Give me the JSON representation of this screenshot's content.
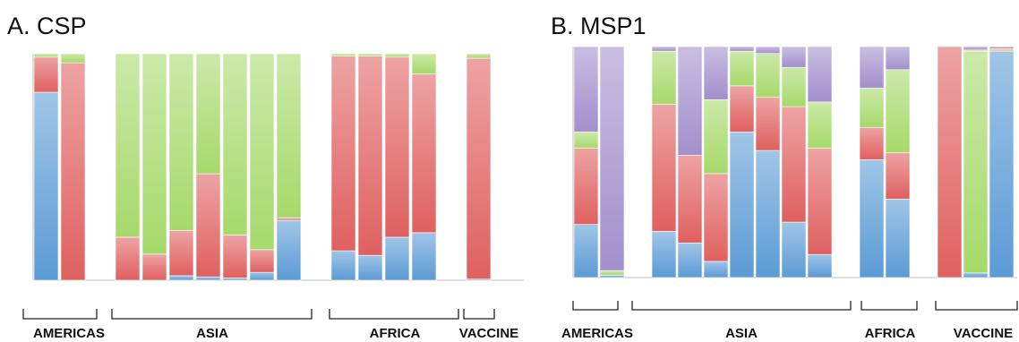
{
  "colors": {
    "blue": "#5b9bd5",
    "red": "#e06060",
    "green": "#a6d96a",
    "purple": "#a28fcc",
    "orange": "#f4b860"
  },
  "chart_data": [
    {
      "type": "bar",
      "stacked": true,
      "percent": true,
      "title": "A. CSP",
      "ylim": [
        0,
        100
      ],
      "segment_order": [
        "blue",
        "red",
        "green"
      ],
      "groups": [
        "AMERICAS",
        "ASIA",
        "AFRICA",
        "VACCINE"
      ],
      "bars": [
        {
          "group": "AMERICAS",
          "values": {
            "blue": 83,
            "red": 15.5,
            "green": 1.5
          }
        },
        {
          "group": "AMERICAS",
          "values": {
            "blue": 0,
            "red": 96,
            "green": 4
          }
        },
        {
          "group": "ASIA",
          "values": {
            "blue": 0,
            "red": 19,
            "green": 81
          }
        },
        {
          "group": "ASIA",
          "values": {
            "blue": 0,
            "red": 11.5,
            "green": 88.5
          }
        },
        {
          "group": "ASIA",
          "values": {
            "blue": 2,
            "red": 20,
            "green": 78
          }
        },
        {
          "group": "ASIA",
          "values": {
            "blue": 1.5,
            "red": 45.5,
            "green": 53
          }
        },
        {
          "group": "ASIA",
          "values": {
            "blue": 1,
            "red": 19,
            "green": 80
          }
        },
        {
          "group": "ASIA",
          "values": {
            "blue": 3.5,
            "red": 10,
            "green": 86.5
          }
        },
        {
          "group": "ASIA",
          "values": {
            "blue": 26.5,
            "red": 1,
            "green": 72.5
          }
        },
        {
          "group": "AFRICA",
          "values": {
            "blue": 13,
            "red": 86,
            "green": 1
          }
        },
        {
          "group": "AFRICA",
          "values": {
            "blue": 11,
            "red": 88,
            "green": 1
          }
        },
        {
          "group": "AFRICA",
          "values": {
            "blue": 19,
            "red": 79.5,
            "green": 1.5
          }
        },
        {
          "group": "AFRICA",
          "values": {
            "blue": 21,
            "red": 70,
            "green": 9
          }
        },
        {
          "group": "VACCINE",
          "values": {
            "blue": 0.5,
            "red": 97.5,
            "green": 2
          }
        }
      ]
    },
    {
      "type": "bar",
      "stacked": true,
      "percent": true,
      "title": "B. MSP1",
      "ylim": [
        0,
        100
      ],
      "segment_order": [
        "blue",
        "red",
        "green",
        "orange",
        "purple"
      ],
      "groups": [
        "AMERICAS",
        "ASIA",
        "AFRICA",
        "VACCINE"
      ],
      "bars": [
        {
          "group": "AMERICAS",
          "values": {
            "blue": 23,
            "red": 33,
            "green": 7,
            "orange": 0,
            "purple": 37
          }
        },
        {
          "group": "AMERICAS",
          "values": {
            "blue": 1,
            "red": 0,
            "green": 2,
            "orange": 0,
            "purple": 97
          }
        },
        {
          "group": "ASIA",
          "values": {
            "blue": 20,
            "red": 55,
            "green": 23,
            "orange": 0,
            "purple": 2
          }
        },
        {
          "group": "ASIA",
          "values": {
            "blue": 15,
            "red": 38,
            "green": 0,
            "orange": 0,
            "purple": 47
          }
        },
        {
          "group": "ASIA",
          "values": {
            "blue": 7,
            "red": 38,
            "green": 32,
            "orange": 0,
            "purple": 23
          }
        },
        {
          "group": "ASIA",
          "values": {
            "blue": 63,
            "red": 20,
            "green": 15,
            "orange": 0,
            "purple": 2
          }
        },
        {
          "group": "ASIA",
          "values": {
            "blue": 55,
            "red": 23,
            "green": 19,
            "orange": 0,
            "purple": 3
          }
        },
        {
          "group": "ASIA",
          "values": {
            "blue": 24,
            "red": 50,
            "green": 17,
            "orange": 0,
            "purple": 9
          }
        },
        {
          "group": "ASIA",
          "values": {
            "blue": 10,
            "red": 46,
            "green": 20,
            "orange": 0,
            "purple": 24
          }
        },
        {
          "group": "AFRICA",
          "values": {
            "blue": 51,
            "red": 14,
            "green": 17,
            "orange": 0,
            "purple": 18
          }
        },
        {
          "group": "AFRICA",
          "values": {
            "blue": 34,
            "red": 20,
            "green": 36,
            "orange": 0,
            "purple": 10
          }
        },
        {
          "group": "VACCINE",
          "values": {
            "blue": 0,
            "red": 100,
            "green": 0,
            "orange": 0,
            "purple": 0
          }
        },
        {
          "group": "VACCINE",
          "values": {
            "blue": 2,
            "red": 0,
            "green": 96,
            "orange": 0.5,
            "purple": 1.5
          }
        },
        {
          "group": "VACCINE",
          "values": {
            "blue": 98,
            "red": 0,
            "green": 0,
            "orange": 1,
            "purple": 1
          }
        }
      ]
    }
  ]
}
